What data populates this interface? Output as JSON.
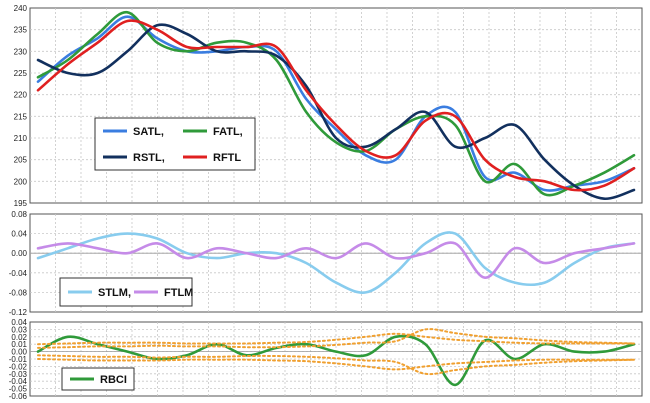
{
  "chart_data": [
    {
      "type": "line",
      "name": "price-panel",
      "ylim": [
        195,
        240
      ],
      "yticks": [
        "240",
        "235",
        "230",
        "225",
        "220",
        "215",
        "210",
        "205",
        "200",
        "195"
      ],
      "grid": true,
      "legend": {
        "placement": "lower-left",
        "entries": [
          {
            "label": "SATL,",
            "color": "#3a7de0"
          },
          {
            "label": "FATL,",
            "color": "#2f9a3a"
          },
          {
            "label": "RSTL,",
            "color": "#12305e"
          },
          {
            "label": "RFTL",
            "color": "#e02020"
          }
        ]
      },
      "x": [
        0,
        5,
        10,
        15,
        20,
        25,
        30,
        35,
        40,
        45,
        50,
        55,
        60,
        65,
        70,
        75,
        80,
        85,
        90,
        95,
        100
      ],
      "series": [
        {
          "name": "SATL,",
          "color": "#3a7de0",
          "values": [
            223,
            229,
            233,
            238,
            233,
            230,
            230,
            231,
            230,
            219,
            212,
            206,
            205,
            215,
            216,
            201,
            202,
            198,
            199,
            200,
            203
          ]
        },
        {
          "name": "FATL,",
          "color": "#2f9a3a",
          "values": [
            224,
            228,
            234,
            239,
            232,
            230,
            232,
            232,
            228,
            216,
            209,
            207,
            212,
            215,
            213,
            200,
            204,
            197,
            199,
            202,
            206
          ]
        },
        {
          "name": "RSTL,",
          "color": "#12305e",
          "values": [
            228,
            225,
            225,
            230,
            236,
            234,
            230,
            230,
            229,
            222,
            210,
            208,
            212,
            216,
            208,
            210,
            213,
            205,
            199,
            196,
            198
          ]
        },
        {
          "name": "RFTL",
          "color": "#e02020",
          "values": [
            221,
            227,
            232,
            237,
            235,
            231,
            231,
            231,
            231,
            221,
            213,
            207,
            206,
            214,
            215,
            205,
            201,
            200,
            198,
            199,
            203
          ]
        }
      ]
    },
    {
      "type": "line",
      "name": "stlm-ftlm-panel",
      "ylim": [
        -0.12,
        0.08
      ],
      "yticks": [
        "0.08",
        "0.04",
        "0.00",
        "-0.04",
        "-0.08",
        "-0.12"
      ],
      "grid": true,
      "legend": {
        "placement": "lower-left",
        "entries": [
          {
            "label": "STLM,",
            "color": "#88ccee"
          },
          {
            "label": "FTLM",
            "color": "#c58be8"
          }
        ]
      },
      "x": [
        0,
        5,
        10,
        15,
        20,
        25,
        30,
        35,
        40,
        45,
        50,
        55,
        60,
        65,
        70,
        75,
        80,
        85,
        90,
        95,
        100
      ],
      "series": [
        {
          "name": "STLM,",
          "color": "#88ccee",
          "values": [
            -0.01,
            0.01,
            0.03,
            0.04,
            0.03,
            0.0,
            -0.01,
            0.0,
            0.0,
            -0.02,
            -0.06,
            -0.08,
            -0.04,
            0.02,
            0.04,
            -0.03,
            -0.06,
            -0.06,
            -0.02,
            0.01,
            0.02
          ]
        },
        {
          "name": "FTLM",
          "color": "#c58be8",
          "values": [
            0.01,
            0.02,
            0.01,
            0.0,
            0.02,
            -0.01,
            0.01,
            0.0,
            -0.01,
            0.01,
            -0.01,
            0.02,
            -0.01,
            0.0,
            0.02,
            -0.05,
            0.01,
            -0.02,
            0.0,
            0.01,
            0.02
          ]
        }
      ]
    },
    {
      "type": "line",
      "name": "rbci-panel",
      "ylim": [
        -0.06,
        0.04
      ],
      "yticks": [
        "0.04",
        "0.03",
        "0.02",
        "0.01",
        "0.00",
        "-0.01",
        "-0.02",
        "-0.03",
        "-0.04",
        "-0.05",
        "-0.06"
      ],
      "grid": true,
      "legend": {
        "placement": "lower-left",
        "entries": [
          {
            "label": "RBCI",
            "color": "#2f9a3a"
          }
        ]
      },
      "x": [
        0,
        5,
        10,
        15,
        20,
        25,
        30,
        35,
        40,
        45,
        50,
        55,
        60,
        65,
        70,
        75,
        80,
        85,
        90,
        95,
        100
      ],
      "series": [
        {
          "name": "RBCI",
          "color": "#2f9a3a",
          "values": [
            0.0,
            0.02,
            0.01,
            0.0,
            -0.01,
            -0.005,
            0.01,
            -0.005,
            0.005,
            0.01,
            0.0,
            -0.005,
            0.02,
            0.01,
            -0.045,
            0.015,
            -0.01,
            0.01,
            0.0,
            0.0,
            0.01
          ]
        },
        {
          "name": "",
          "color": "#f0a030",
          "dashed": true,
          "values": [
            0.005,
            0.006,
            0.007,
            0.007,
            0.008,
            0.007,
            0.007,
            0.006,
            0.006,
            0.007,
            0.009,
            0.012,
            0.014,
            0.03,
            0.025,
            0.02,
            0.018,
            0.015,
            0.013,
            0.012,
            0.011
          ]
        },
        {
          "name": "",
          "color": "#f0a030",
          "dashed": true,
          "values": [
            0.01,
            0.011,
            0.012,
            0.012,
            0.012,
            0.011,
            0.011,
            0.011,
            0.012,
            0.013,
            0.016,
            0.02,
            0.024,
            0.02,
            0.016,
            0.014,
            0.012,
            0.011,
            0.011,
            0.011,
            0.011
          ]
        },
        {
          "name": "",
          "color": "#f0a030",
          "dashed": true,
          "values": [
            -0.005,
            -0.006,
            -0.007,
            -0.007,
            -0.008,
            -0.007,
            -0.007,
            -0.006,
            -0.006,
            -0.007,
            -0.009,
            -0.012,
            -0.014,
            -0.03,
            -0.025,
            -0.02,
            -0.018,
            -0.015,
            -0.013,
            -0.012,
            -0.011
          ]
        },
        {
          "name": "",
          "color": "#f0a030",
          "dashed": true,
          "values": [
            -0.01,
            -0.011,
            -0.012,
            -0.012,
            -0.012,
            -0.011,
            -0.011,
            -0.011,
            -0.012,
            -0.013,
            -0.016,
            -0.02,
            -0.024,
            -0.02,
            -0.016,
            -0.014,
            -0.012,
            -0.011,
            -0.011,
            -0.011,
            -0.011
          ]
        }
      ]
    }
  ]
}
